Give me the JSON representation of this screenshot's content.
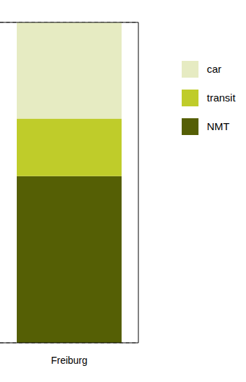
{
  "chart_data": {
    "type": "bar",
    "stacked": true,
    "categories": [
      "Freiburg"
    ],
    "series": [
      {
        "name": "car",
        "color": "#e6ebc2",
        "values": [
          30
        ]
      },
      {
        "name": "transit",
        "color": "#bfcc2a",
        "values": [
          18
        ]
      },
      {
        "name": "NMT",
        "color": "#555f05",
        "values": [
          52
        ]
      }
    ],
    "ylim": [
      0,
      100
    ],
    "yticks": [
      0,
      10,
      20,
      30,
      40,
      50,
      60,
      70,
      80,
      90,
      100
    ],
    "grid": true,
    "legend": "right",
    "tick_labels": "x"
  }
}
